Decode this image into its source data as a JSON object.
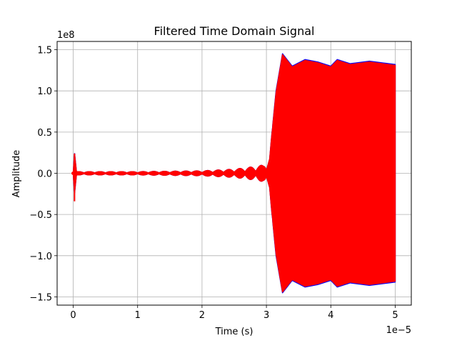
{
  "chart_data": {
    "type": "line",
    "title": "Filtered Time Domain Signal",
    "xlabel": "Time (s)",
    "ylabel": "Amplitude",
    "x_exponent_label": "1e−5",
    "y_exponent_label": "1e8",
    "xlim": [
      -0.25,
      5.25
    ],
    "ylim": [
      -1.6,
      1.6
    ],
    "x_ticks": [
      0,
      1,
      2,
      3,
      4,
      5
    ],
    "x_tick_labels": [
      "0",
      "1",
      "2",
      "3",
      "4",
      "5"
    ],
    "y_ticks": [
      -1.5,
      -1.0,
      -0.5,
      0.0,
      0.5,
      1.0,
      1.5
    ],
    "y_tick_labels": [
      "−1.5",
      "−1.0",
      "−0.5",
      "0.0",
      "0.5",
      "1.0",
      "1.5"
    ],
    "grid": true,
    "series": [
      {
        "color": "#0000ff",
        "x": [
          0.0,
          0.02,
          0.05,
          1.0,
          2.0,
          2.5,
          2.8,
          2.95,
          3.05,
          3.15,
          3.25,
          3.4,
          3.6,
          3.8,
          4.0,
          4.1,
          4.3,
          4.6,
          4.8,
          5.0
        ],
        "envelope": [
          0.0,
          0.25,
          0.02,
          0.02,
          0.03,
          0.05,
          0.08,
          0.1,
          0.2,
          1.0,
          1.45,
          1.3,
          1.38,
          1.35,
          1.3,
          1.38,
          1.33,
          1.36,
          1.34,
          1.32
        ]
      },
      {
        "color": "#ff0000",
        "x": [
          0.0,
          0.02,
          0.05,
          1.0,
          2.0,
          2.5,
          2.8,
          2.95,
          3.05,
          3.15,
          3.25,
          3.4,
          3.6,
          3.8,
          4.0,
          4.1,
          4.3,
          4.6,
          4.8,
          5.0
        ],
        "envelope": [
          0.0,
          0.24,
          0.02,
          0.02,
          0.03,
          0.05,
          0.08,
          0.1,
          0.2,
          0.98,
          1.44,
          1.29,
          1.37,
          1.34,
          1.29,
          1.37,
          1.32,
          1.35,
          1.33,
          1.31
        ]
      }
    ]
  }
}
